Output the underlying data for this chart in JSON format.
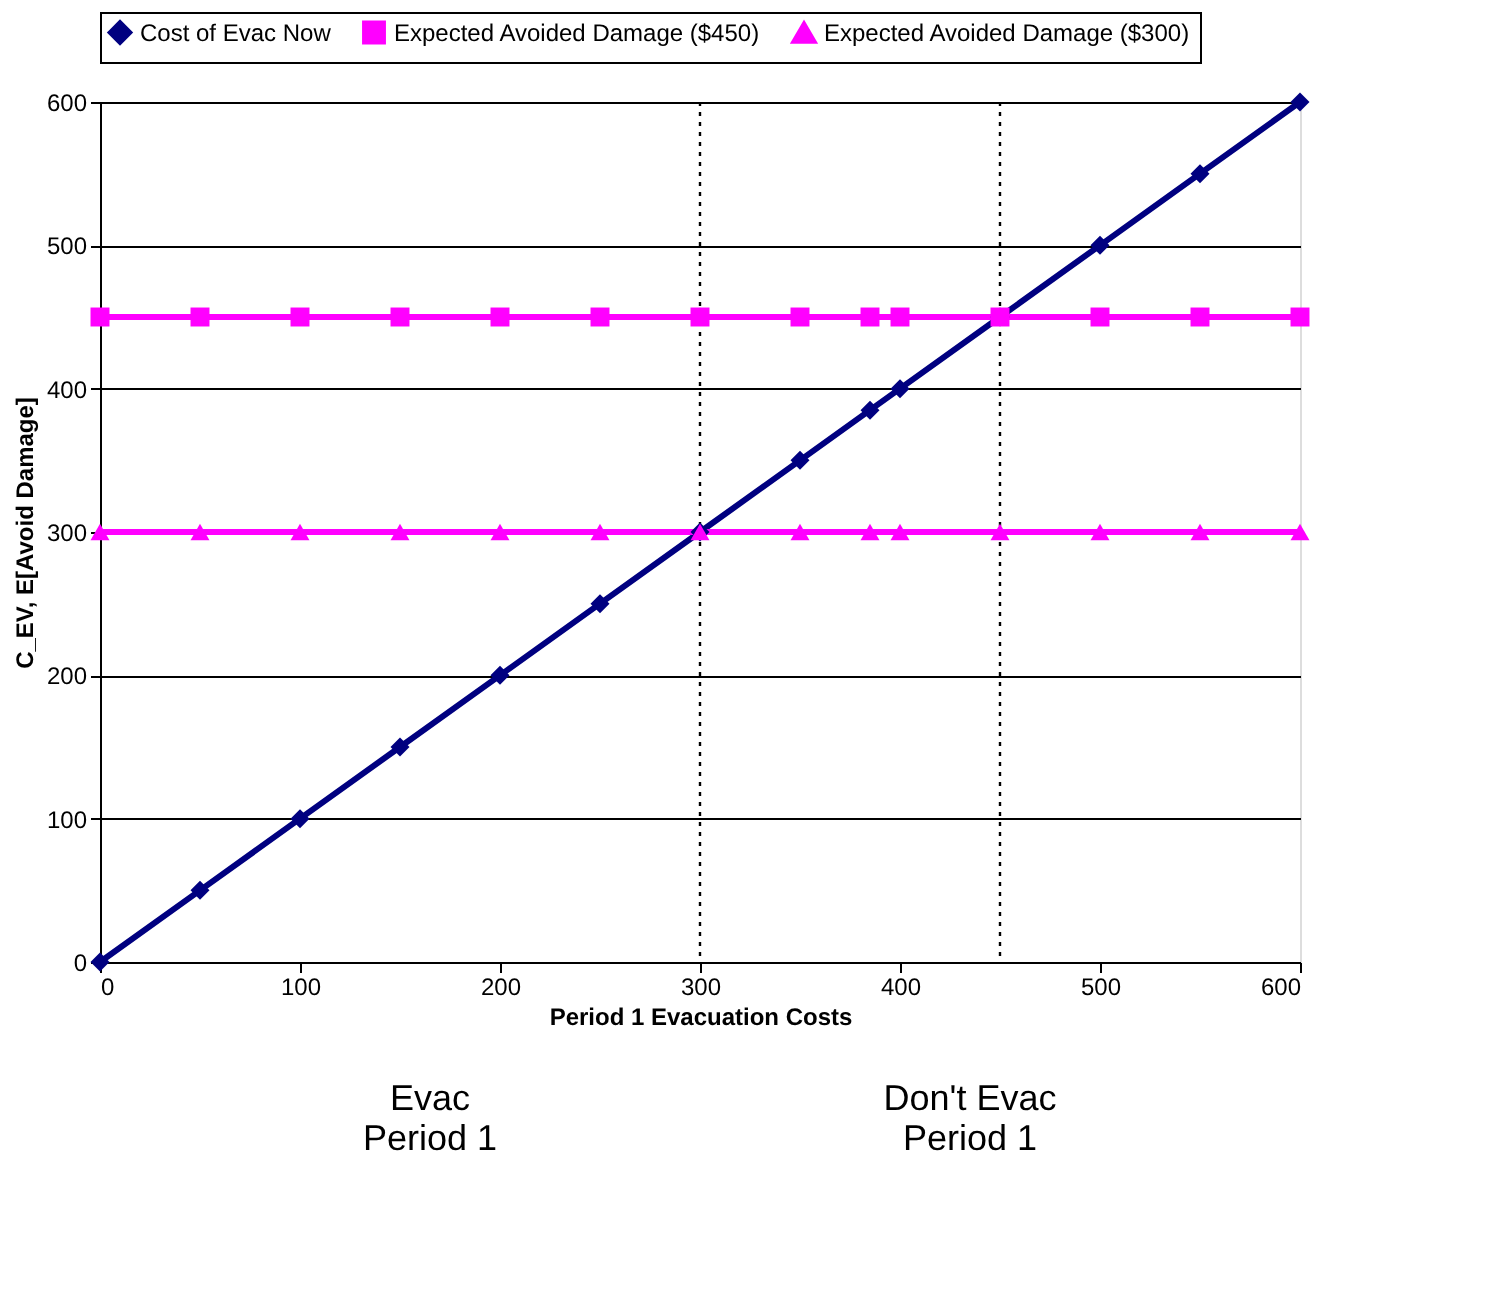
{
  "chart_data": {
    "type": "line",
    "xlabel": "Period 1 Evacuation Costs",
    "ylabel": "C_EV, E[Avoid Damage]",
    "x": [
      0,
      50,
      100,
      150,
      200,
      250,
      300,
      350,
      385,
      400,
      450,
      500,
      550,
      600
    ],
    "series": [
      {
        "name": "Cost of Evac Now",
        "color": "#000080",
        "marker": "diamond",
        "values": [
          0,
          50,
          100,
          150,
          200,
          250,
          300,
          350,
          385,
          400,
          450,
          500,
          550,
          600
        ]
      },
      {
        "name": "Expected Avoided Damage ($450)",
        "color": "#ff00ff",
        "marker": "square",
        "values": [
          450,
          450,
          450,
          450,
          450,
          450,
          450,
          450,
          450,
          450,
          450,
          450,
          450,
          450
        ]
      },
      {
        "name": "Expected Avoided Damage ($300)",
        "color": "#ff00ff",
        "marker": "triangle",
        "values": [
          300,
          300,
          300,
          300,
          300,
          300,
          300,
          300,
          300,
          300,
          300,
          300,
          300,
          300
        ]
      }
    ],
    "xlim": [
      0,
      600
    ],
    "xticks": [
      0,
      100,
      200,
      300,
      400,
      500,
      600
    ],
    "ylim": [
      0,
      600
    ],
    "yticks": [
      0,
      100,
      200,
      300,
      400,
      500,
      600
    ],
    "grid": "y",
    "legend": "top",
    "line_style": "solid",
    "ref_lines": [
      {
        "axis": "x",
        "value": 300,
        "color": "#000000",
        "line_style": "dotted"
      },
      {
        "axis": "x",
        "value": 450,
        "color": "#000000",
        "line_style": "dotted"
      }
    ],
    "annotations": [
      "Evac\nPeriod 1",
      "Don't Evac\nPeriod 1"
    ]
  }
}
